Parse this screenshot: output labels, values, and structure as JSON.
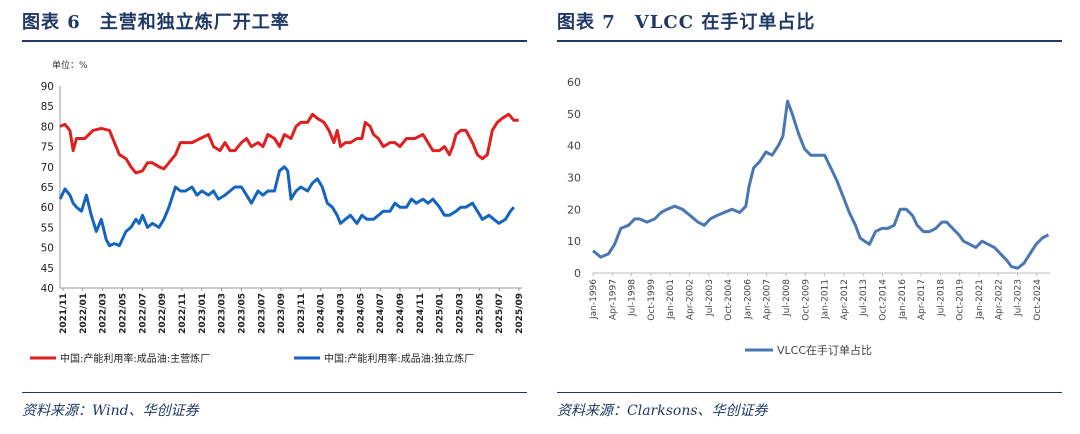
{
  "left": {
    "title": "图表 6　主营和独立炼厂开工率",
    "source": "资料来源：Wind、华创证券",
    "chart_data": {
      "type": "line",
      "unit_label": "单位：%",
      "ylim": [
        40,
        90
      ],
      "yticks": [
        40,
        45,
        50,
        55,
        60,
        65,
        70,
        75,
        80,
        85,
        90
      ],
      "grid": false,
      "legend_position": "bottom",
      "x_tick_labels": [
        "2021/11",
        "2022/01",
        "2022/03",
        "2022/05",
        "2022/07",
        "2022/09",
        "2022/11",
        "2023/01",
        "2023/03",
        "2023/05",
        "2023/07",
        "2023/09",
        "2023/11",
        "2024/01",
        "2024/03",
        "2024/05",
        "2024/07",
        "2024/09",
        "2024/11",
        "2025/01",
        "2025/03",
        "2025/05",
        "2025/07",
        "2025/09"
      ],
      "series": [
        {
          "name": "中国:产能利用率:成品油:主营炼厂",
          "color": "#e02020",
          "points": [
            [
              0,
              80
            ],
            [
              0.3,
              80.5
            ],
            [
              0.6,
              79
            ],
            [
              0.8,
              74
            ],
            [
              1,
              77
            ],
            [
              1.5,
              77
            ],
            [
              2,
              79
            ],
            [
              2.5,
              79.5
            ],
            [
              3,
              79
            ],
            [
              3.3,
              76
            ],
            [
              3.6,
              73
            ],
            [
              4,
              72
            ],
            [
              4.3,
              70
            ],
            [
              4.6,
              68.5
            ],
            [
              5,
              69
            ],
            [
              5.3,
              71
            ],
            [
              5.6,
              71
            ],
            [
              6,
              70
            ],
            [
              6.3,
              69.5
            ],
            [
              6.6,
              71
            ],
            [
              7,
              73
            ],
            [
              7.3,
              76
            ],
            [
              7.6,
              76
            ],
            [
              8,
              76
            ],
            [
              8.5,
              77
            ],
            [
              9,
              78
            ],
            [
              9.3,
              75
            ],
            [
              9.7,
              74
            ],
            [
              10,
              76
            ],
            [
              10.3,
              74
            ],
            [
              10.6,
              74
            ],
            [
              11,
              76
            ],
            [
              11.3,
              77
            ],
            [
              11.6,
              75
            ],
            [
              12,
              76
            ],
            [
              12.3,
              75
            ],
            [
              12.6,
              78
            ],
            [
              13,
              77
            ],
            [
              13.3,
              75
            ],
            [
              13.6,
              78
            ],
            [
              14,
              77
            ],
            [
              14.3,
              80
            ],
            [
              14.6,
              81
            ],
            [
              15,
              81
            ],
            [
              15.3,
              83
            ],
            [
              15.6,
              82
            ],
            [
              16,
              81
            ],
            [
              16.3,
              79
            ],
            [
              16.6,
              76
            ],
            [
              16.8,
              79
            ],
            [
              17,
              75
            ],
            [
              17.3,
              76
            ],
            [
              17.6,
              76
            ],
            [
              18,
              77
            ],
            [
              18.3,
              77
            ],
            [
              18.5,
              81
            ],
            [
              18.8,
              80
            ],
            [
              19,
              78
            ],
            [
              19.3,
              77
            ],
            [
              19.6,
              75
            ],
            [
              20,
              76
            ],
            [
              20.3,
              76
            ],
            [
              20.6,
              75
            ],
            [
              21,
              77
            ],
            [
              21.5,
              77
            ],
            [
              22,
              78
            ],
            [
              22.3,
              76
            ],
            [
              22.6,
              74
            ],
            [
              23,
              74
            ],
            [
              23.3,
              75
            ],
            [
              23.6,
              73
            ],
            [
              23.8,
              75
            ],
            [
              24,
              78
            ],
            [
              24.3,
              79
            ],
            [
              24.6,
              79
            ],
            [
              25,
              76
            ],
            [
              25.3,
              73
            ],
            [
              25.6,
              72
            ],
            [
              25.9,
              73
            ],
            [
              26.2,
              79
            ],
            [
              26.5,
              81
            ],
            [
              26.8,
              82
            ],
            [
              27.2,
              83
            ],
            [
              27.5,
              81.5
            ],
            [
              27.8,
              81.5
            ]
          ]
        },
        {
          "name": "中国:产能利用率:成品油:独立炼厂",
          "color": "#1565c0",
          "points": [
            [
              0,
              62
            ],
            [
              0.3,
              64.5
            ],
            [
              0.6,
              63
            ],
            [
              0.8,
              61
            ],
            [
              1,
              60
            ],
            [
              1.3,
              59
            ],
            [
              1.6,
              63
            ],
            [
              1.9,
              58
            ],
            [
              2.2,
              54
            ],
            [
              2.5,
              57
            ],
            [
              2.8,
              52
            ],
            [
              3,
              50.5
            ],
            [
              3.3,
              51
            ],
            [
              3.6,
              50.5
            ],
            [
              4,
              54
            ],
            [
              4.3,
              55
            ],
            [
              4.6,
              57
            ],
            [
              4.8,
              56
            ],
            [
              5,
              58
            ],
            [
              5.3,
              55
            ],
            [
              5.6,
              56
            ],
            [
              6,
              55
            ],
            [
              6.3,
              57
            ],
            [
              6.6,
              60
            ],
            [
              7,
              65
            ],
            [
              7.3,
              64
            ],
            [
              7.6,
              64
            ],
            [
              8,
              65
            ],
            [
              8.3,
              63
            ],
            [
              8.6,
              64
            ],
            [
              9,
              63
            ],
            [
              9.3,
              64
            ],
            [
              9.6,
              62
            ],
            [
              10,
              63
            ],
            [
              10.3,
              64
            ],
            [
              10.6,
              65
            ],
            [
              11,
              65
            ],
            [
              11.3,
              63
            ],
            [
              11.6,
              61
            ],
            [
              12,
              64
            ],
            [
              12.3,
              63
            ],
            [
              12.6,
              64
            ],
            [
              13,
              64
            ],
            [
              13.3,
              69
            ],
            [
              13.6,
              70
            ],
            [
              13.8,
              69
            ],
            [
              14,
              62
            ],
            [
              14.3,
              64
            ],
            [
              14.6,
              65
            ],
            [
              15,
              64
            ],
            [
              15.3,
              66
            ],
            [
              15.6,
              67
            ],
            [
              15.9,
              65
            ],
            [
              16.2,
              61
            ],
            [
              16.5,
              60
            ],
            [
              16.8,
              58
            ],
            [
              17,
              56
            ],
            [
              17.3,
              57
            ],
            [
              17.6,
              58
            ],
            [
              18,
              56
            ],
            [
              18.3,
              58
            ],
            [
              18.6,
              57
            ],
            [
              19,
              57
            ],
            [
              19.3,
              58
            ],
            [
              19.6,
              59
            ],
            [
              20,
              59
            ],
            [
              20.3,
              61
            ],
            [
              20.6,
              60
            ],
            [
              21,
              60
            ],
            [
              21.3,
              62
            ],
            [
              21.6,
              61
            ],
            [
              22,
              62
            ],
            [
              22.3,
              61
            ],
            [
              22.6,
              62
            ],
            [
              23,
              60
            ],
            [
              23.3,
              58
            ],
            [
              23.6,
              58
            ],
            [
              24,
              59
            ],
            [
              24.3,
              60
            ],
            [
              24.6,
              60
            ],
            [
              25,
              61
            ],
            [
              25.3,
              59
            ],
            [
              25.6,
              57
            ],
            [
              26,
              58
            ],
            [
              26.3,
              57
            ],
            [
              26.6,
              56
            ],
            [
              27,
              57
            ],
            [
              27.3,
              59
            ],
            [
              27.5,
              60
            ]
          ]
        }
      ]
    }
  },
  "right": {
    "title": "图表 7　VLCC 在手订单占比",
    "source": "资料来源：Clarksons、华创证券",
    "chart_data": {
      "type": "line",
      "ylim": [
        0,
        60
      ],
      "yticks": [
        0,
        10,
        20,
        30,
        40,
        50,
        60
      ],
      "grid": false,
      "legend_position": "bottom",
      "x_tick_labels": [
        "Jan-1996",
        "Apr-1997",
        "Jul-1998",
        "Oct-1999",
        "Jan-2001",
        "Apr-2002",
        "Jul-2003",
        "Oct-2004",
        "Jan-2006",
        "Apr-2007",
        "Jul-2008",
        "Oct-2009",
        "Jan-2011",
        "Apr-2012",
        "Jul-2013",
        "Oct-2014",
        "Jan-2016",
        "Apr-2017",
        "Jul-2018",
        "Oct-2019",
        "Jan-2021",
        "Apr-2022",
        "Jul-2023",
        "Oct-2024"
      ],
      "series": [
        {
          "name": "VLCC在手订单占比",
          "color": "#4a77b4",
          "points": [
            [
              1996.0,
              7
            ],
            [
              1996.5,
              5
            ],
            [
              1997.0,
              6
            ],
            [
              1997.4,
              9
            ],
            [
              1997.8,
              14
            ],
            [
              1998.3,
              15
            ],
            [
              1998.7,
              17
            ],
            [
              1999.0,
              17
            ],
            [
              1999.5,
              16
            ],
            [
              2000.0,
              17
            ],
            [
              2000.4,
              19
            ],
            [
              2000.8,
              20
            ],
            [
              2001.3,
              21
            ],
            [
              2001.8,
              20
            ],
            [
              2002.3,
              18
            ],
            [
              2002.8,
              16
            ],
            [
              2003.2,
              15
            ],
            [
              2003.6,
              17
            ],
            [
              2004.0,
              18
            ],
            [
              2004.5,
              19
            ],
            [
              2005.0,
              20
            ],
            [
              2005.5,
              19
            ],
            [
              2005.9,
              21
            ],
            [
              2006.1,
              27
            ],
            [
              2006.4,
              33
            ],
            [
              2006.8,
              35
            ],
            [
              2007.2,
              38
            ],
            [
              2007.6,
              37
            ],
            [
              2008.0,
              40
            ],
            [
              2008.3,
              43
            ],
            [
              2008.6,
              54
            ],
            [
              2008.9,
              50
            ],
            [
              2009.3,
              44
            ],
            [
              2009.7,
              39
            ],
            [
              2010.1,
              37
            ],
            [
              2010.6,
              37
            ],
            [
              2011.0,
              37
            ],
            [
              2011.4,
              33
            ],
            [
              2011.8,
              29
            ],
            [
              2012.2,
              24
            ],
            [
              2012.6,
              19
            ],
            [
              2013.0,
              15
            ],
            [
              2013.3,
              11
            ],
            [
              2013.6,
              10
            ],
            [
              2013.9,
              9
            ],
            [
              2014.3,
              13
            ],
            [
              2014.7,
              14
            ],
            [
              2015.1,
              14
            ],
            [
              2015.5,
              15
            ],
            [
              2015.9,
              20
            ],
            [
              2016.3,
              20
            ],
            [
              2016.7,
              18
            ],
            [
              2017.0,
              15
            ],
            [
              2017.4,
              13
            ],
            [
              2017.8,
              13
            ],
            [
              2018.2,
              14
            ],
            [
              2018.6,
              16
            ],
            [
              2018.9,
              16
            ],
            [
              2019.3,
              14
            ],
            [
              2019.7,
              12
            ],
            [
              2020.0,
              10
            ],
            [
              2020.4,
              9
            ],
            [
              2020.8,
              8
            ],
            [
              2021.2,
              10
            ],
            [
              2021.6,
              9
            ],
            [
              2022.0,
              8
            ],
            [
              2022.4,
              6
            ],
            [
              2022.8,
              4
            ],
            [
              2023.1,
              2
            ],
            [
              2023.5,
              1.5
            ],
            [
              2023.9,
              3
            ],
            [
              2024.3,
              6
            ],
            [
              2024.7,
              9
            ],
            [
              2025.1,
              11
            ],
            [
              2025.5,
              12
            ]
          ]
        }
      ]
    }
  }
}
